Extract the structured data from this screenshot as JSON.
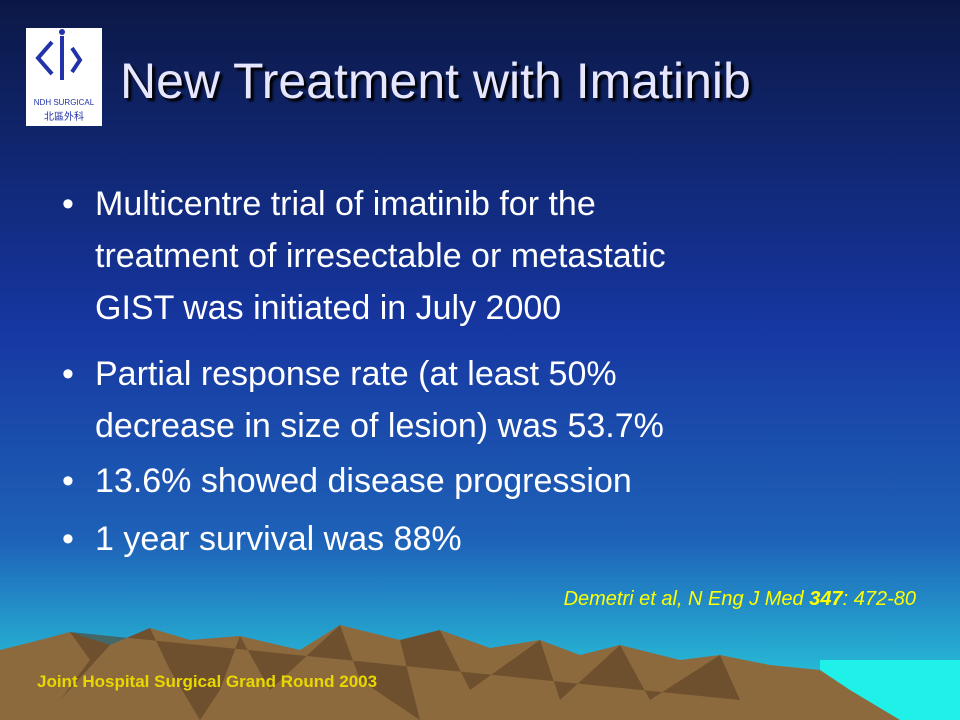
{
  "logo": {
    "line1": "NDH SURGICAL",
    "line2": "北區外科"
  },
  "title": "New Treatment with Imatinib",
  "bullets": [
    {
      "lines": [
        "Multicentre trial of imatinib for the",
        "treatment of irresectable or metastatic",
        "GIST was initiated in July 2000"
      ]
    },
    {
      "lines": [
        "Partial response rate (at least 50%",
        "decrease in size of lesion) was 53.7%"
      ]
    },
    {
      "lines": [
        "13.6% showed disease progression"
      ]
    },
    {
      "lines": [
        "1 year survival was 88%"
      ]
    }
  ],
  "citation": {
    "before": "Demetri et al, N Eng J Med ",
    "volume": "347",
    "after": ": 472-80"
  },
  "footer": "Joint Hospital Surgical Grand Round 2003"
}
